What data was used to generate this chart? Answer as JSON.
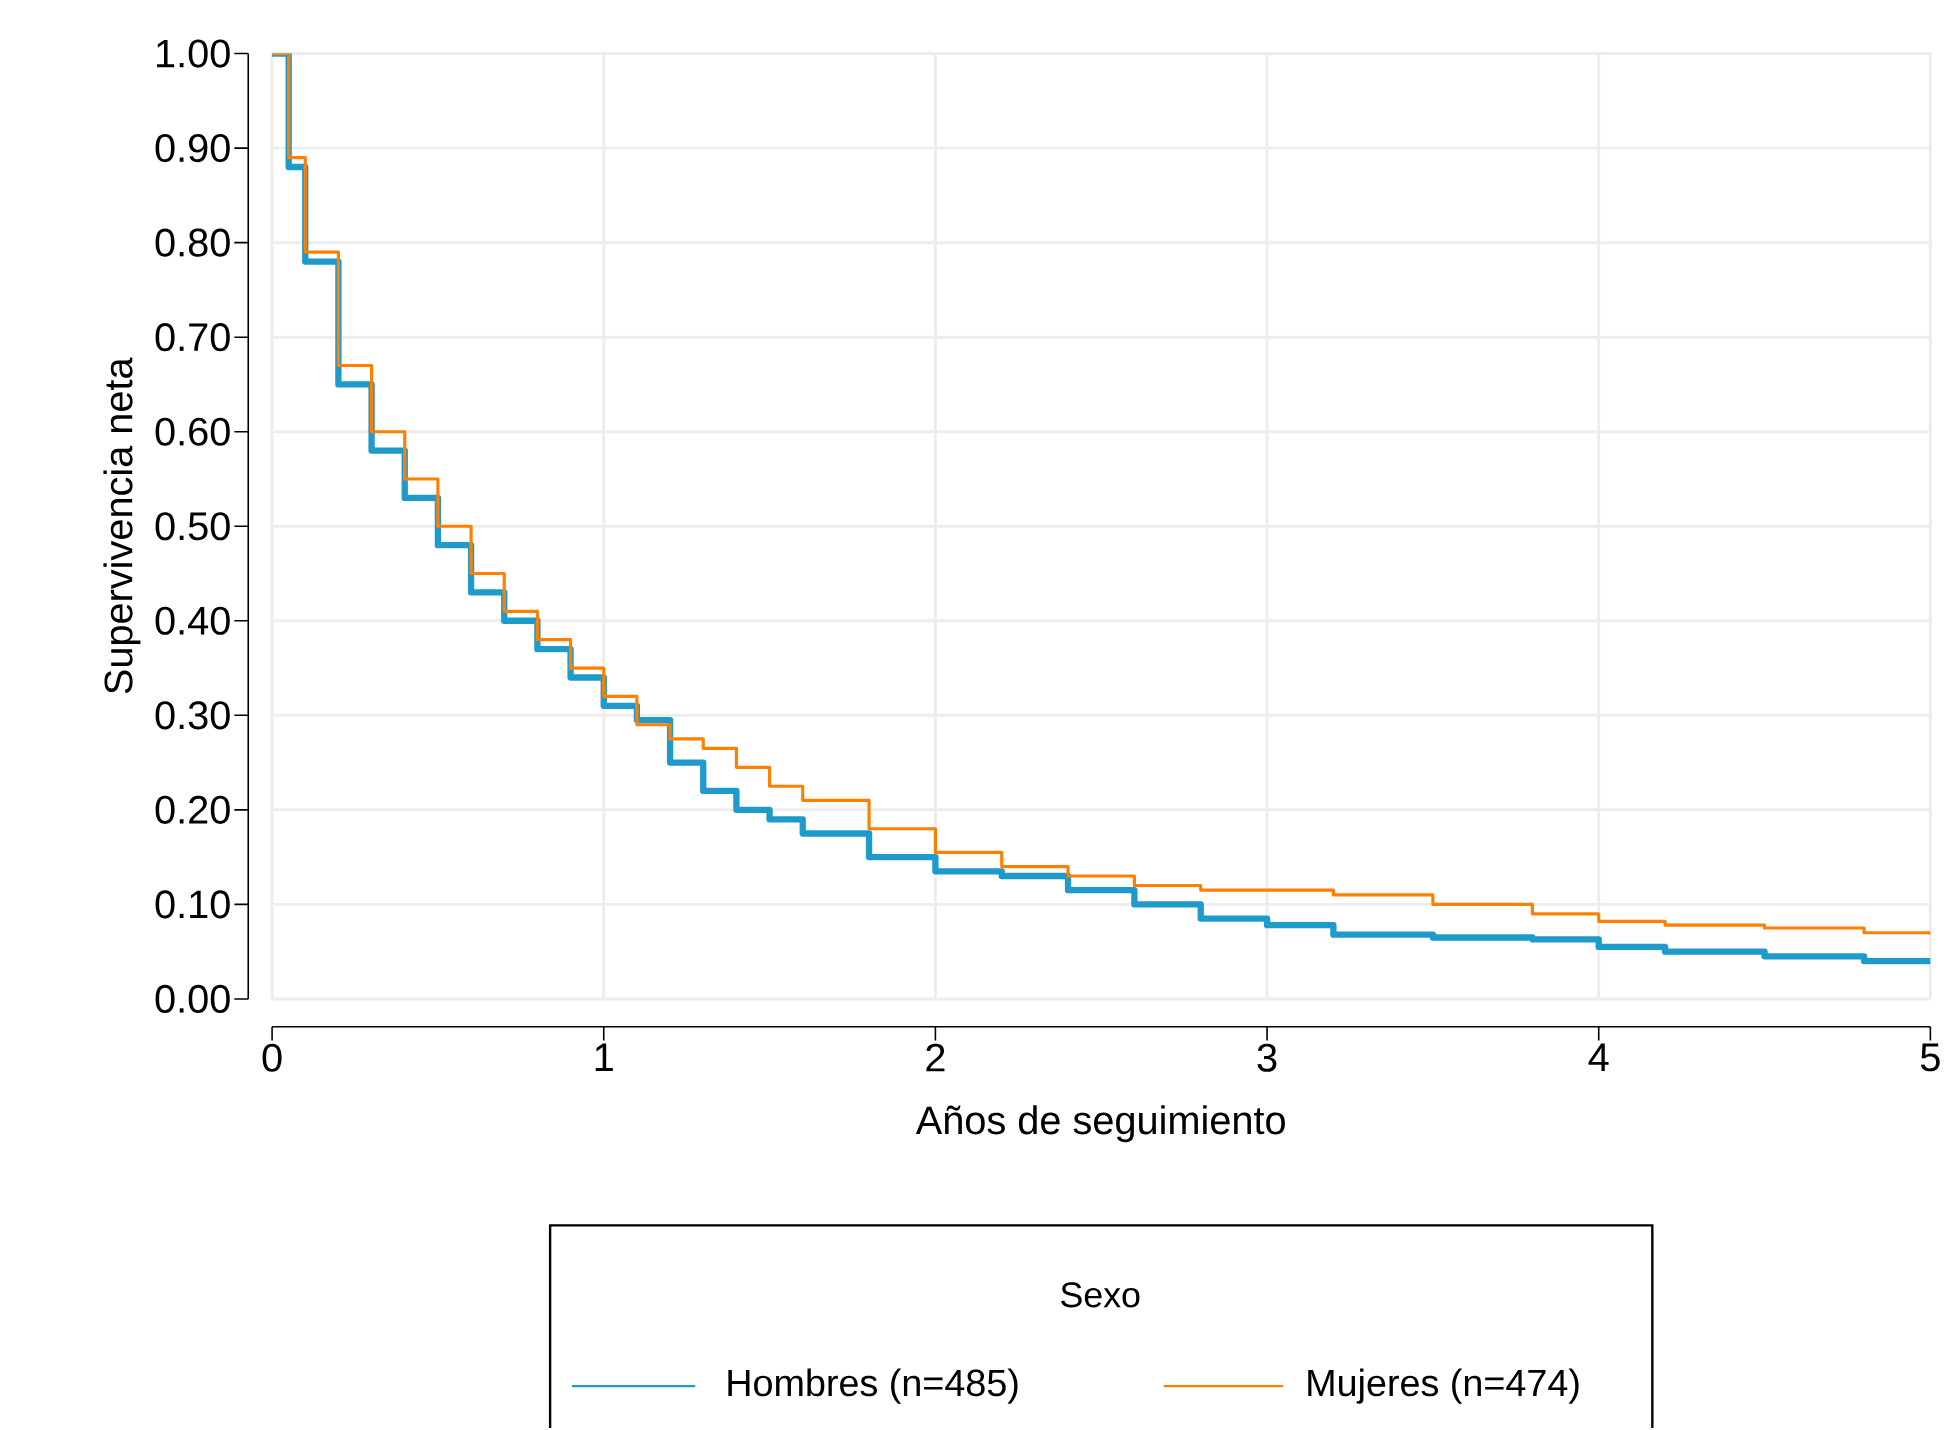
{
  "chart_data": {
    "type": "step",
    "xlabel": "Años de seguimiento",
    "ylabel": "Supervivencia neta",
    "legend_title": "Sexo",
    "xlim": [
      0,
      5
    ],
    "xticks": [
      0,
      1,
      2,
      3,
      4,
      5
    ],
    "ylim": [
      0,
      1
    ],
    "yticks": [
      {
        "value": 0,
        "label": "0.00"
      },
      {
        "value": 0.1,
        "label": "0.10"
      },
      {
        "value": 0.2,
        "label": "0.20"
      },
      {
        "value": 0.3,
        "label": "0.30"
      },
      {
        "value": 0.4,
        "label": "0.40"
      },
      {
        "value": 0.5,
        "label": "0.50"
      },
      {
        "value": 0.6,
        "label": "0.60"
      },
      {
        "value": 0.7,
        "label": "0.70"
      },
      {
        "value": 0.8,
        "label": "0.80"
      },
      {
        "value": 0.9,
        "label": "0.90"
      },
      {
        "value": 1,
        "label": "1.00"
      }
    ],
    "grid": true,
    "legend": "bottom",
    "x": [
      0,
      0.05,
      0.1,
      0.2,
      0.3,
      0.4,
      0.5,
      0.6,
      0.7,
      0.8,
      0.9,
      1.0,
      1.1,
      1.2,
      1.3,
      1.4,
      1.5,
      1.6,
      1.8,
      2.0,
      2.2,
      2.4,
      2.6,
      2.8,
      3.0,
      3.2,
      3.5,
      3.8,
      4.0,
      4.2,
      4.5,
      4.8,
      5.0
    ],
    "series": [
      {
        "name": "Hombres (n=485)",
        "color": "#1f9bcb",
        "values": [
          1.0,
          0.88,
          0.78,
          0.65,
          0.58,
          0.53,
          0.48,
          0.43,
          0.4,
          0.37,
          0.34,
          0.31,
          0.295,
          0.25,
          0.22,
          0.2,
          0.19,
          0.175,
          0.15,
          0.135,
          0.13,
          0.115,
          0.1,
          0.085,
          0.078,
          0.068,
          0.065,
          0.063,
          0.055,
          0.05,
          0.045,
          0.04,
          0.037
        ]
      },
      {
        "name": "Mujeres (n=474)",
        "color": "#ff8000",
        "values": [
          1.0,
          0.89,
          0.79,
          0.67,
          0.6,
          0.55,
          0.5,
          0.45,
          0.41,
          0.38,
          0.35,
          0.32,
          0.29,
          0.275,
          0.265,
          0.245,
          0.225,
          0.21,
          0.18,
          0.155,
          0.14,
          0.13,
          0.12,
          0.115,
          0.115,
          0.11,
          0.1,
          0.09,
          0.082,
          0.078,
          0.075,
          0.07,
          0.068
        ]
      }
    ]
  }
}
